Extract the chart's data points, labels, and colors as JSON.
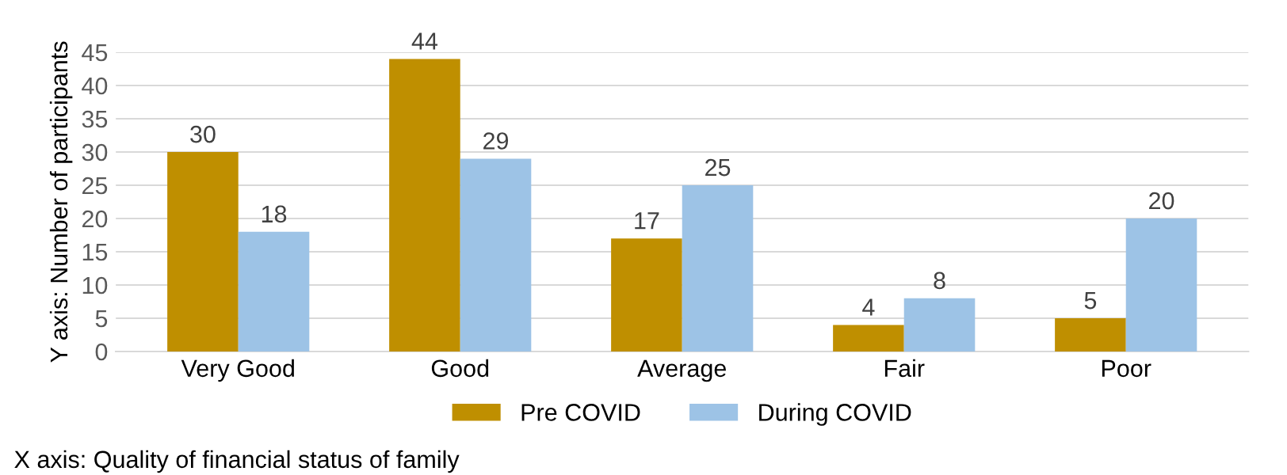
{
  "chart_data": {
    "type": "bar",
    "categories": [
      "Very Good",
      "Good",
      "Average",
      "Fair",
      "Poor"
    ],
    "series": [
      {
        "name": "Pre COVID",
        "color": "#bf8f00",
        "values": [
          30,
          44,
          17,
          4,
          5
        ]
      },
      {
        "name": "During COVID",
        "color": "#9dc3e6",
        "values": [
          18,
          29,
          25,
          8,
          20
        ]
      }
    ],
    "ylim": [
      0,
      45
    ],
    "yticks": [
      0,
      5,
      10,
      15,
      20,
      25,
      30,
      35,
      40,
      45
    ],
    "grid": "y",
    "legend": "bottom",
    "data_labels": true,
    "ylabel": "Y axis: Number of participants",
    "xlabel": "X axis: Quality of financial status of family"
  }
}
